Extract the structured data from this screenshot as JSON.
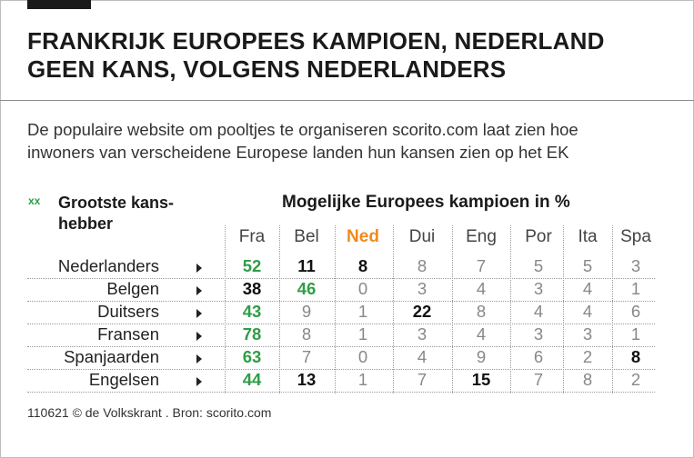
{
  "title": [
    "FRANKRIJK EUROPEES KAMPIOEN, NEDERLAND",
    "GEEN KANS, VOLGENS NEDERLANDERS"
  ],
  "intro": [
    "De populaire website om pooltjes te organiseren scorito.com laat zien hoe",
    "inwoners van verscheidene Europese landen hun kansen zien op het EK"
  ],
  "legend": {
    "mark": "xx",
    "label": [
      "Grootste kans-",
      "hebber"
    ]
  },
  "source": "110621 © de Volkskrant . Bron: scorito.com",
  "colors": {
    "green": "#2e9e46",
    "orange": "#f08a1c",
    "text": "#111111",
    "muted": "#888888"
  },
  "chart_data": {
    "type": "table",
    "title": "Mogelijke Europees kampioen in %",
    "columns": [
      "Fra",
      "Bel",
      "Ned",
      "Dui",
      "Eng",
      "Por",
      "Ita",
      "Spa"
    ],
    "highlight_column": "Ned",
    "rows": [
      {
        "label": "Nederlanders",
        "values": [
          52,
          11,
          8,
          8,
          7,
          5,
          5,
          3
        ],
        "top": 0,
        "bold": [
          1,
          2
        ]
      },
      {
        "label": "Belgen",
        "values": [
          38,
          46,
          0,
          3,
          4,
          3,
          4,
          1
        ],
        "top": 1,
        "bold": [
          0
        ]
      },
      {
        "label": "Duitsers",
        "values": [
          43,
          9,
          1,
          22,
          8,
          4,
          4,
          6
        ],
        "top": 0,
        "bold": [
          3
        ]
      },
      {
        "label": "Fransen",
        "values": [
          78,
          8,
          1,
          3,
          4,
          3,
          3,
          1
        ],
        "top": 0,
        "bold": []
      },
      {
        "label": "Spanjaarden",
        "values": [
          63,
          7,
          0,
          4,
          9,
          6,
          2,
          8
        ],
        "top": 0,
        "bold": [
          7
        ]
      },
      {
        "label": "Engelsen",
        "values": [
          44,
          13,
          1,
          7,
          15,
          7,
          8,
          2
        ],
        "top": 0,
        "bold": [
          1,
          4
        ]
      }
    ]
  }
}
